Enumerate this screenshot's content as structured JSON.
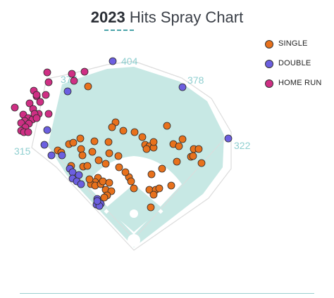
{
  "title": {
    "year": "2023",
    "rest": "Hits Spray Chart"
  },
  "colors": {
    "single": "#e8711c",
    "double": "#6c5fe0",
    "home_run": "#cf2f84",
    "outfield": "#c7e8e4",
    "infield_dirt": "#ffffff",
    "wall": "#d9d9d9",
    "distance_text": "#8fcfd0"
  },
  "chart_data": {
    "type": "scatter",
    "field_distances": {
      "left_line": "315",
      "left_center": "377",
      "center": "404",
      "right_center": "378",
      "right_line": "322"
    },
    "legend": [
      {
        "name": "SINGLE",
        "key": "single"
      },
      {
        "name": "DOUBLE",
        "key": "double"
      },
      {
        "name": "HOME RUN",
        "key": "home_run"
      }
    ],
    "series": [
      {
        "name": "SINGLE",
        "points": [
          [
            125,
            123
          ],
          [
            164,
            174
          ],
          [
            159,
            181
          ],
          [
            175,
            186
          ],
          [
            191,
            188
          ],
          [
            202,
            195
          ],
          [
            154,
            202
          ],
          [
            134,
            201
          ],
          [
            114,
            197
          ],
          [
            82,
            214
          ],
          [
            87,
            217
          ],
          [
            98,
            205
          ],
          [
            104,
            203
          ],
          [
            115,
            212
          ],
          [
            117,
            221
          ],
          [
            131,
            216
          ],
          [
            155,
            218
          ],
          [
            168,
            222
          ],
          [
            206,
            206
          ],
          [
            212,
            208
          ],
          [
            218,
            210
          ],
          [
            218,
            202
          ],
          [
            208,
            212
          ],
          [
            246,
            205
          ],
          [
            254,
            208
          ],
          [
            275,
            212
          ],
          [
            282,
            212
          ],
          [
            271,
            223
          ],
          [
            274,
            222
          ],
          [
            237,
            179
          ],
          [
            259,
            198
          ],
          [
            251,
            230
          ],
          [
            230,
            240
          ],
          [
            286,
            232
          ],
          [
            101,
            236
          ],
          [
            118,
            237
          ],
          [
            124,
            236
          ],
          [
            140,
            228
          ],
          [
            150,
            233
          ],
          [
            169,
            238
          ],
          [
            183,
            252
          ],
          [
            178,
            245
          ],
          [
            186,
            258
          ],
          [
            215,
            248
          ],
          [
            190,
            268
          ],
          [
            212,
            270
          ],
          [
            221,
            270
          ],
          [
            226,
            268
          ],
          [
            243,
            264
          ],
          [
            218,
            277
          ],
          [
            214,
            295
          ],
          [
            139,
            253
          ],
          [
            135,
            259
          ],
          [
            129,
            262
          ],
          [
            127,
            255
          ],
          [
            135,
            264
          ],
          [
            143,
            262
          ],
          [
            146,
            258
          ],
          [
            150,
            270
          ],
          [
            158,
            272
          ],
          [
            152,
            278
          ],
          [
            148,
            281
          ],
          [
            155,
            260
          ]
        ]
      },
      {
        "name": "DOUBLE",
        "points": [
          [
            160,
            87
          ],
          [
            259,
            124
          ],
          [
            96,
            130
          ],
          [
            67,
            185
          ],
          [
            63,
            206
          ],
          [
            73,
            221
          ],
          [
            88,
            221
          ],
          [
            99,
            240
          ],
          [
            103,
            245
          ],
          [
            112,
            249
          ],
          [
            103,
            254
          ],
          [
            109,
            258
          ],
          [
            115,
            262
          ],
          [
            138,
            283
          ],
          [
            137,
            291
          ],
          [
            143,
            290
          ],
          [
            141,
            293
          ],
          [
            324,
            197
          ],
          [
            138,
            286
          ]
        ]
      },
      {
        "name": "HOME RUN",
        "points": [
          [
            67,
            103
          ],
          [
            69,
            117
          ],
          [
            102,
            105
          ],
          [
            120,
            102
          ],
          [
            105,
            115
          ],
          [
            48,
            129
          ],
          [
            52,
            137
          ],
          [
            65,
            135
          ],
          [
            57,
            145
          ],
          [
            42,
            147
          ],
          [
            21,
            153
          ],
          [
            47,
            155
          ],
          [
            55,
            162
          ],
          [
            33,
            163
          ],
          [
            40,
            168
          ],
          [
            46,
            170
          ],
          [
            49,
            162
          ],
          [
            52,
            168
          ],
          [
            35,
            172
          ],
          [
            30,
            175
          ],
          [
            41,
            176
          ],
          [
            36,
            181
          ],
          [
            30,
            186
          ],
          [
            34,
            188
          ],
          [
            40,
            188
          ],
          [
            69,
            162
          ],
          [
            52,
            135
          ]
        ]
      }
    ]
  }
}
